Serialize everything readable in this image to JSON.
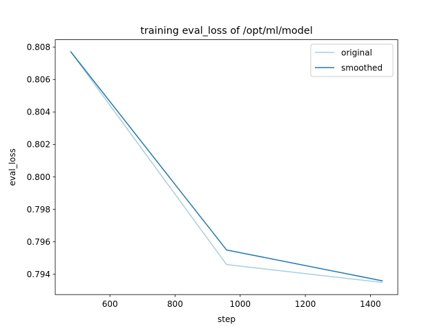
{
  "chart_data": {
    "type": "line",
    "title": "training eval_loss of /opt/ml/model",
    "xlabel": "step",
    "ylabel": "eval_loss",
    "xlim": [
      432,
      1484
    ],
    "ylim": [
      0.79275,
      0.80845
    ],
    "xticks": [
      600,
      800,
      1000,
      1200,
      1400
    ],
    "yticks": [
      0.794,
      0.796,
      0.798,
      0.8,
      0.802,
      0.804,
      0.806,
      0.808
    ],
    "ytick_labels": [
      "0.794",
      "0.796",
      "0.798",
      "0.800",
      "0.802",
      "0.804",
      "0.806",
      "0.808"
    ],
    "grid": false,
    "legend_position": "upper right",
    "series": [
      {
        "name": "original",
        "color": "#a6cee3",
        "x": [
          480,
          958,
          1436
        ],
        "y": [
          0.8077,
          0.7946,
          0.7935
        ]
      },
      {
        "name": "smoothed",
        "color": "#1f78b4",
        "x": [
          480,
          958,
          1436
        ],
        "y": [
          0.8077,
          0.7955,
          0.7936
        ]
      }
    ]
  }
}
